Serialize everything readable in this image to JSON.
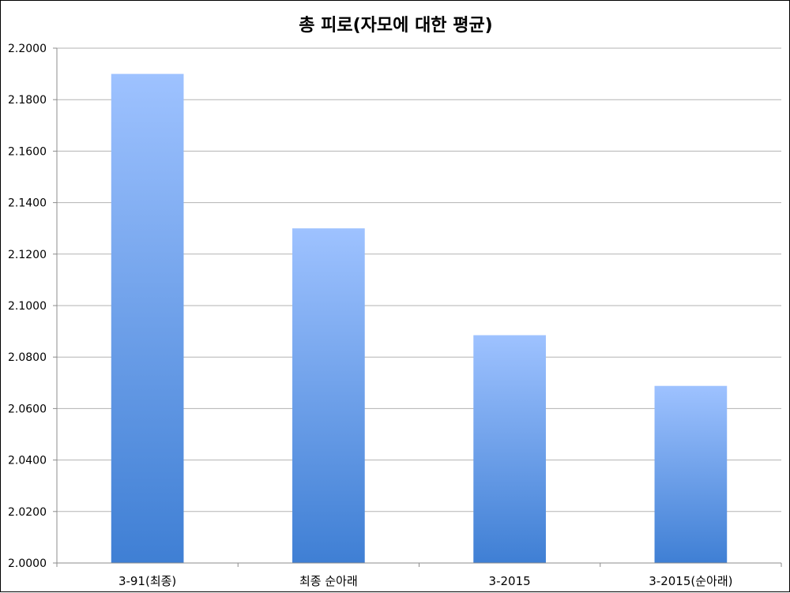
{
  "chart_data": {
    "type": "bar",
    "title": "총 피로(자모에 대한 평균)",
    "xlabel": "",
    "ylabel": "",
    "categories": [
      "3-91(최종)",
      "최종 순아래",
      "3-2015",
      "3-2015(순아래)"
    ],
    "values": [
      2.19,
      2.13,
      2.0885,
      2.0688
    ],
    "ylim": [
      2.0,
      2.2
    ],
    "yticks": [
      2.0,
      2.02,
      2.04,
      2.06,
      2.08,
      2.1,
      2.12,
      2.14,
      2.16,
      2.18,
      2.2
    ],
    "ytick_labels": [
      "2.0000",
      "2.0200",
      "2.0400",
      "2.0600",
      "2.0800",
      "2.1000",
      "2.1200",
      "2.1400",
      "2.1600",
      "2.1800",
      "2.2000"
    ],
    "grid": true,
    "legend": "none",
    "colors": {
      "bar_top": "#9EC2FF",
      "bar_bottom": "#3F7FD4",
      "grid": "#b3b3b3",
      "axis": "#8c8c8c"
    }
  }
}
